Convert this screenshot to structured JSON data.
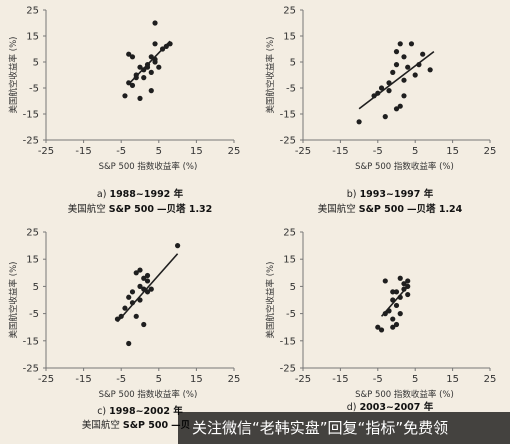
{
  "colors": {
    "point": "#1f1f1f",
    "line": "#1f1f1f",
    "grid": "#cfcfcf",
    "background": "#f3ede2"
  },
  "watermark": {
    "text": "关注微信“老韩实盘”回复“指标”免费领"
  },
  "chart_data": [
    {
      "type": "scatter",
      "panel": "a",
      "caption_prefix": "a)",
      "caption_period": "1988~1992 年",
      "caption_line2_a": "美国航空",
      "caption_line2_b": "S&P 500",
      "caption_line2_c": "—贝塔 1.32",
      "xlabel": "S&P 500 指数收益率 (%)",
      "ylabel": "美国航空收益率 (%)",
      "xlim": [
        -25,
        25
      ],
      "ylim": [
        -25,
        25
      ],
      "xticks": [
        -25,
        -15,
        -5,
        5,
        15,
        25
      ],
      "yticks": [
        25,
        15,
        5,
        -5,
        -15,
        -25
      ],
      "grid": false,
      "trend": {
        "x": [
          -3,
          8
        ],
        "y": [
          -3.5,
          13
        ]
      },
      "points": [
        [
          -3,
          8
        ],
        [
          -2,
          7
        ],
        [
          -1,
          -1
        ],
        [
          -3,
          -3
        ],
        [
          -2,
          -4
        ],
        [
          1,
          -1
        ],
        [
          1,
          2
        ],
        [
          0,
          3
        ],
        [
          2,
          3
        ],
        [
          3,
          1
        ],
        [
          2,
          4
        ],
        [
          4,
          5
        ],
        [
          3,
          7
        ],
        [
          4,
          6
        ],
        [
          4,
          12
        ],
        [
          4,
          20
        ],
        [
          6,
          10
        ],
        [
          7,
          11
        ],
        [
          8,
          12
        ],
        [
          -4,
          -8
        ],
        [
          0,
          -9
        ],
        [
          3,
          -6
        ],
        [
          5,
          3
        ],
        [
          -1,
          0
        ]
      ]
    },
    {
      "type": "scatter",
      "panel": "b",
      "caption_prefix": "b)",
      "caption_period": "1993~1997 年",
      "caption_line2_a": "美国航空",
      "caption_line2_b": "S&P 500",
      "caption_line2_c": "—贝塔 1.24",
      "xlabel": "S&P 500 指数收益率 (%)",
      "ylabel": "美国航空收益率 (%)",
      "xlim": [
        -25,
        25
      ],
      "ylim": [
        -25,
        25
      ],
      "xticks": [
        -25,
        -15,
        -5,
        5,
        15,
        25
      ],
      "yticks": [
        25,
        15,
        5,
        -5,
        -15,
        -25
      ],
      "grid": false,
      "trend": {
        "x": [
          -10,
          10
        ],
        "y": [
          -13,
          9
        ]
      },
      "points": [
        [
          -10,
          -18
        ],
        [
          -6,
          -8
        ],
        [
          -5,
          -7
        ],
        [
          -4,
          -5
        ],
        [
          -2,
          -6
        ],
        [
          -3,
          -16
        ],
        [
          -2,
          -3
        ],
        [
          -1,
          1
        ],
        [
          0,
          4
        ],
        [
          0,
          9
        ],
        [
          1,
          12
        ],
        [
          1,
          -12
        ],
        [
          2,
          -8
        ],
        [
          2,
          -2
        ],
        [
          2,
          7
        ],
        [
          3,
          3
        ],
        [
          4,
          12
        ],
        [
          5,
          0
        ],
        [
          6,
          4
        ],
        [
          7,
          8
        ],
        [
          9,
          2
        ],
        [
          0,
          -13
        ]
      ]
    },
    {
      "type": "scatter",
      "panel": "c",
      "caption_prefix": "c)",
      "caption_period": "1998~2002 年",
      "caption_line2_a": "美国航空",
      "caption_line2_b": "S&P 500",
      "caption_line2_c": "—贝",
      "xlabel": "S&P 500 指数收益率 (%)",
      "ylabel": "美国航空收益率 (%)",
      "xlim": [
        -25,
        25
      ],
      "ylim": [
        -25,
        25
      ],
      "xticks": [
        -25,
        -15,
        -5,
        5,
        15,
        25
      ],
      "yticks": [
        25,
        15,
        5,
        -5,
        -15,
        -25
      ],
      "grid": false,
      "trend": {
        "x": [
          -6,
          10
        ],
        "y": [
          -8,
          17
        ]
      },
      "points": [
        [
          -6,
          -7
        ],
        [
          -5,
          -6
        ],
        [
          -4,
          -3
        ],
        [
          -3,
          -16
        ],
        [
          -3,
          1
        ],
        [
          -2,
          -1
        ],
        [
          -2,
          3
        ],
        [
          -1,
          -6
        ],
        [
          -1,
          10
        ],
        [
          0,
          11
        ],
        [
          0,
          5
        ],
        [
          1,
          4
        ],
        [
          1,
          8
        ],
        [
          2,
          3
        ],
        [
          2,
          7
        ],
        [
          3,
          4
        ],
        [
          1,
          -9
        ],
        [
          2,
          9
        ],
        [
          10,
          20
        ],
        [
          0,
          0
        ]
      ]
    },
    {
      "type": "scatter",
      "panel": "d",
      "caption_prefix": "d)",
      "caption_period": "2003~2007 年",
      "caption_line2_a": "",
      "caption_line2_b": "",
      "caption_line2_c": "",
      "xlabel": "S&P 500 指数收益率 (%)",
      "ylabel": "美国航空收益率 (%)",
      "xlim": [
        -25,
        25
      ],
      "ylim": [
        -25,
        25
      ],
      "xticks": [
        -25,
        -15,
        -5,
        5,
        15,
        25
      ],
      "yticks": [
        25,
        15,
        5,
        -5,
        -15,
        -25
      ],
      "grid": false,
      "trend": {
        "x": [
          -4,
          3
        ],
        "y": [
          -6,
          5
        ]
      },
      "points": [
        [
          -5,
          -10
        ],
        [
          -4,
          -11
        ],
        [
          -3,
          -5
        ],
        [
          -3,
          7
        ],
        [
          -2,
          -4
        ],
        [
          -1,
          -7
        ],
        [
          -1,
          -10
        ],
        [
          -1,
          0
        ],
        [
          0,
          -9
        ],
        [
          0,
          -2
        ],
        [
          0,
          3
        ],
        [
          1,
          1
        ],
        [
          1,
          -5
        ],
        [
          1,
          8
        ],
        [
          2,
          6
        ],
        [
          2,
          4
        ],
        [
          3,
          7
        ],
        [
          3,
          5
        ],
        [
          3,
          2
        ],
        [
          -1,
          3
        ]
      ]
    }
  ]
}
